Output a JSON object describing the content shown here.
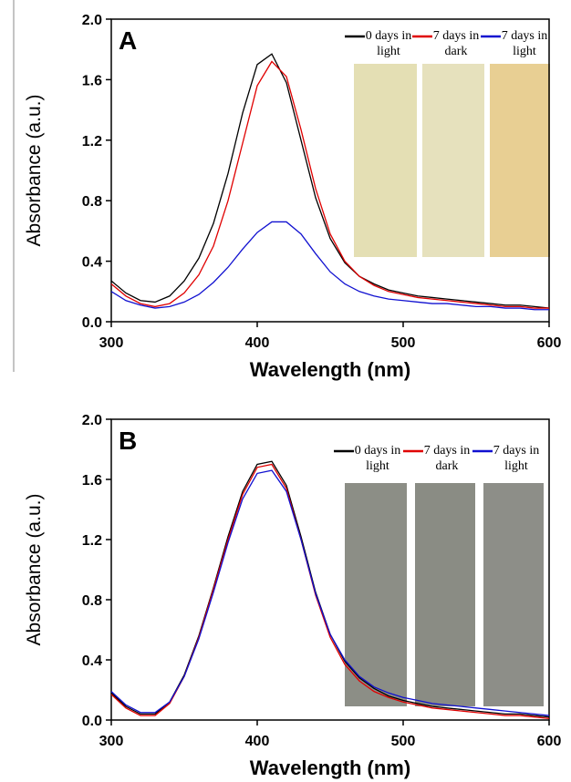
{
  "chart_data": [
    {
      "type": "line",
      "label": "A",
      "xlabel": "Wavelength (nm)",
      "ylabel": "Absorbance (a.u.)",
      "xlim": [
        300,
        600
      ],
      "xticks": [
        300,
        400,
        500,
        600
      ],
      "ylim": [
        0,
        2
      ],
      "yticks": [
        {
          "value": 0,
          "label": "0.0"
        },
        0.4,
        0.8,
        1.2,
        1.6,
        {
          "value": 2,
          "label": "2.0"
        }
      ],
      "x": [
        300,
        310,
        320,
        330,
        340,
        350,
        360,
        370,
        380,
        390,
        400,
        410,
        420,
        430,
        440,
        450,
        460,
        470,
        480,
        490,
        500,
        510,
        520,
        530,
        540,
        550,
        560,
        570,
        580,
        590,
        600
      ],
      "series": [
        {
          "name": "0 days in light",
          "color": "#000000",
          "values": [
            0.27,
            0.19,
            0.14,
            0.13,
            0.17,
            0.27,
            0.42,
            0.65,
            0.98,
            1.38,
            1.7,
            1.77,
            1.58,
            1.2,
            0.82,
            0.55,
            0.39,
            0.3,
            0.25,
            0.21,
            0.19,
            0.17,
            0.16,
            0.15,
            0.14,
            0.13,
            0.12,
            0.11,
            0.11,
            0.1,
            0.09
          ]
        },
        {
          "name": "7 days in dark",
          "color": "#e00000",
          "values": [
            0.25,
            0.17,
            0.12,
            0.1,
            0.12,
            0.19,
            0.31,
            0.5,
            0.8,
            1.18,
            1.56,
            1.72,
            1.62,
            1.27,
            0.88,
            0.58,
            0.4,
            0.3,
            0.24,
            0.2,
            0.18,
            0.16,
            0.15,
            0.14,
            0.13,
            0.12,
            0.11,
            0.1,
            0.1,
            0.09,
            0.09
          ]
        },
        {
          "name": "7 days in light",
          "color": "#1010d0",
          "values": [
            0.2,
            0.14,
            0.11,
            0.09,
            0.1,
            0.13,
            0.18,
            0.26,
            0.36,
            0.48,
            0.59,
            0.66,
            0.66,
            0.58,
            0.45,
            0.33,
            0.25,
            0.2,
            0.17,
            0.15,
            0.14,
            0.13,
            0.12,
            0.12,
            0.11,
            0.1,
            0.1,
            0.09,
            0.09,
            0.08,
            0.08
          ]
        }
      ]
    },
    {
      "type": "line",
      "label": "B",
      "xlabel": "Wavelength (nm)",
      "ylabel": "Absorbance (a.u.)",
      "xlim": [
        300,
        600
      ],
      "xticks": [
        300,
        400,
        500,
        600
      ],
      "ylim": [
        0,
        2
      ],
      "yticks": [
        {
          "value": 0,
          "label": "0.0"
        },
        0.4,
        0.8,
        1.2,
        1.6,
        {
          "value": 2,
          "label": "2.0"
        }
      ],
      "x": [
        300,
        310,
        320,
        330,
        340,
        350,
        360,
        370,
        380,
        390,
        400,
        410,
        420,
        430,
        440,
        450,
        460,
        470,
        480,
        490,
        500,
        510,
        520,
        530,
        540,
        550,
        560,
        570,
        580,
        590,
        600
      ],
      "series": [
        {
          "name": "0 days in light",
          "color": "#000000",
          "values": [
            0.18,
            0.09,
            0.04,
            0.04,
            0.12,
            0.3,
            0.56,
            0.88,
            1.22,
            1.52,
            1.7,
            1.72,
            1.56,
            1.22,
            0.85,
            0.57,
            0.39,
            0.28,
            0.21,
            0.16,
            0.13,
            0.11,
            0.09,
            0.08,
            0.07,
            0.06,
            0.05,
            0.04,
            0.04,
            0.03,
            0.02
          ]
        },
        {
          "name": "7 days in dark",
          "color": "#e00000",
          "values": [
            0.17,
            0.08,
            0.03,
            0.03,
            0.11,
            0.29,
            0.55,
            0.87,
            1.2,
            1.5,
            1.68,
            1.7,
            1.54,
            1.2,
            0.83,
            0.55,
            0.37,
            0.26,
            0.19,
            0.15,
            0.12,
            0.1,
            0.08,
            0.07,
            0.06,
            0.05,
            0.04,
            0.03,
            0.03,
            0.02,
            0.01
          ]
        },
        {
          "name": "7 days in light",
          "color": "#1010d0",
          "values": [
            0.19,
            0.1,
            0.05,
            0.05,
            0.12,
            0.29,
            0.54,
            0.85,
            1.18,
            1.47,
            1.64,
            1.66,
            1.52,
            1.2,
            0.84,
            0.57,
            0.4,
            0.29,
            0.22,
            0.18,
            0.15,
            0.13,
            0.11,
            0.1,
            0.09,
            0.08,
            0.07,
            0.06,
            0.05,
            0.04,
            0.03
          ]
        }
      ]
    }
  ]
}
